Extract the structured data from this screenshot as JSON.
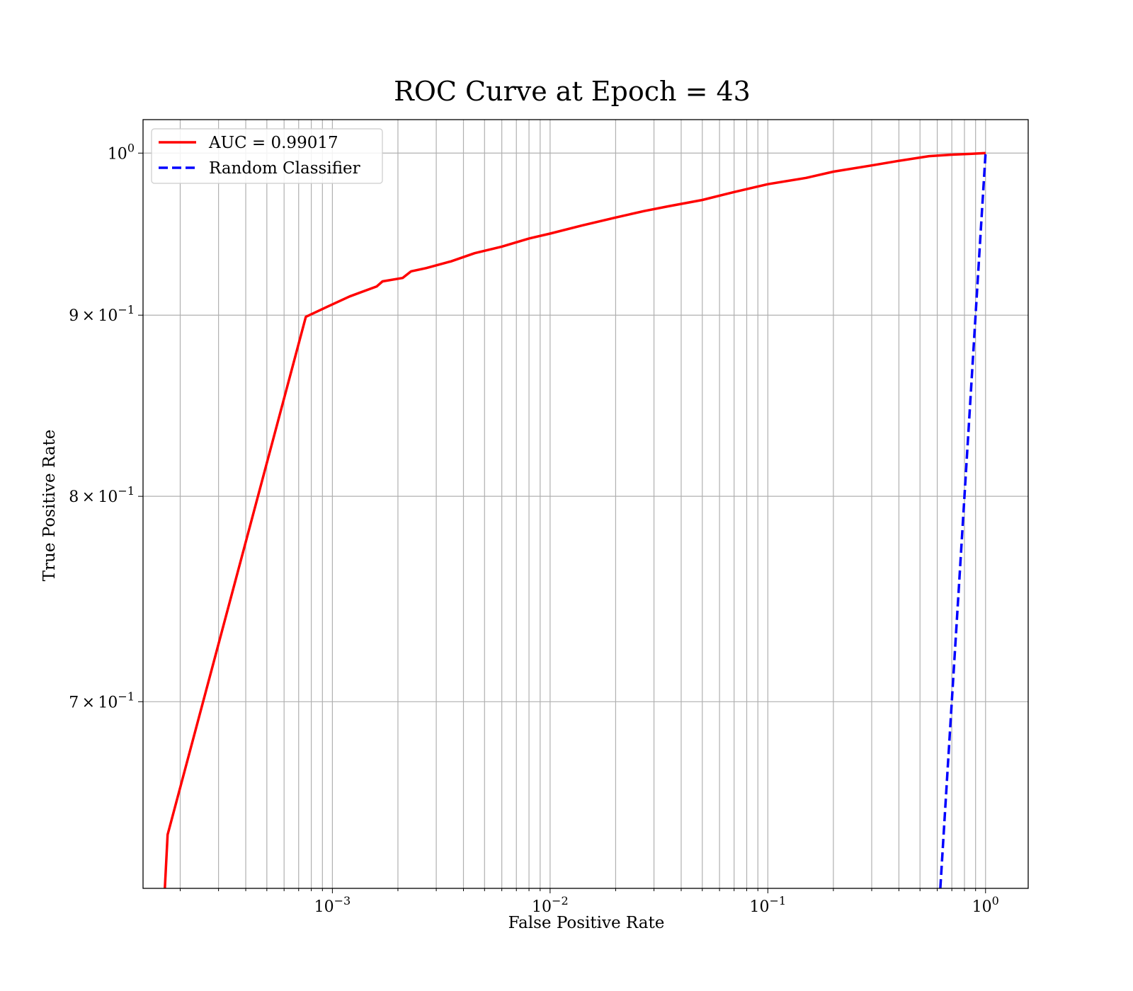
{
  "chart_data": {
    "type": "line",
    "title": "ROC Curve at Epoch = 43",
    "xlabel": "False Positive Rate",
    "ylabel": "True Positive Rate",
    "xscale": "log",
    "yscale": "log",
    "xlim": [
      0.000135,
      1.57
    ],
    "ylim": [
      0.62,
      1.022
    ],
    "grid": "both major and minor",
    "legend_placement": "upper left",
    "x_ticks": [
      {
        "value": 0.001,
        "base": "10",
        "exp": "−3"
      },
      {
        "value": 0.01,
        "base": "10",
        "exp": "−2"
      },
      {
        "value": 0.1,
        "base": "10",
        "exp": "−1"
      },
      {
        "value": 1,
        "base": "10",
        "exp": "0"
      }
    ],
    "y_ticks": [
      {
        "value": 1.0,
        "prefix": "",
        "base": "10",
        "exp": "0"
      },
      {
        "value": 0.9,
        "prefix": "9 × ",
        "base": "10",
        "exp": "−1"
      },
      {
        "value": 0.8,
        "prefix": "8 × ",
        "base": "10",
        "exp": "−1"
      },
      {
        "value": 0.7,
        "prefix": "7 × ",
        "base": "10",
        "exp": "−1"
      }
    ],
    "series": [
      {
        "name": "AUC = 0.99017",
        "color": "#ff0000",
        "style": "solid",
        "x": [
          0.00017,
          0.000175,
          0.000755,
          0.00095,
          0.0012,
          0.0016,
          0.0017,
          0.0021,
          0.0023,
          0.0027,
          0.0035,
          0.0045,
          0.006,
          0.008,
          0.01,
          0.014,
          0.02,
          0.027,
          0.035,
          0.05,
          0.07,
          0.1,
          0.15,
          0.2,
          0.3,
          0.4,
          0.55,
          0.7,
          0.85,
          1.0
        ],
        "y": [
          0.62,
          0.642,
          0.899,
          0.905,
          0.911,
          0.917,
          0.92,
          0.922,
          0.926,
          0.928,
          0.932,
          0.937,
          0.941,
          0.946,
          0.949,
          0.954,
          0.959,
          0.963,
          0.966,
          0.97,
          0.975,
          0.98,
          0.984,
          0.988,
          0.992,
          0.995,
          0.998,
          0.999,
          0.9995,
          1.0
        ]
      },
      {
        "name": "Random Classifier",
        "color": "#0000ff",
        "style": "dashed",
        "x": [
          0.62,
          0.65,
          0.7,
          0.75,
          0.8,
          0.85,
          0.9,
          0.95,
          1.0
        ],
        "y": [
          0.62,
          0.65,
          0.7,
          0.75,
          0.8,
          0.85,
          0.9,
          0.95,
          1.0
        ]
      }
    ]
  }
}
